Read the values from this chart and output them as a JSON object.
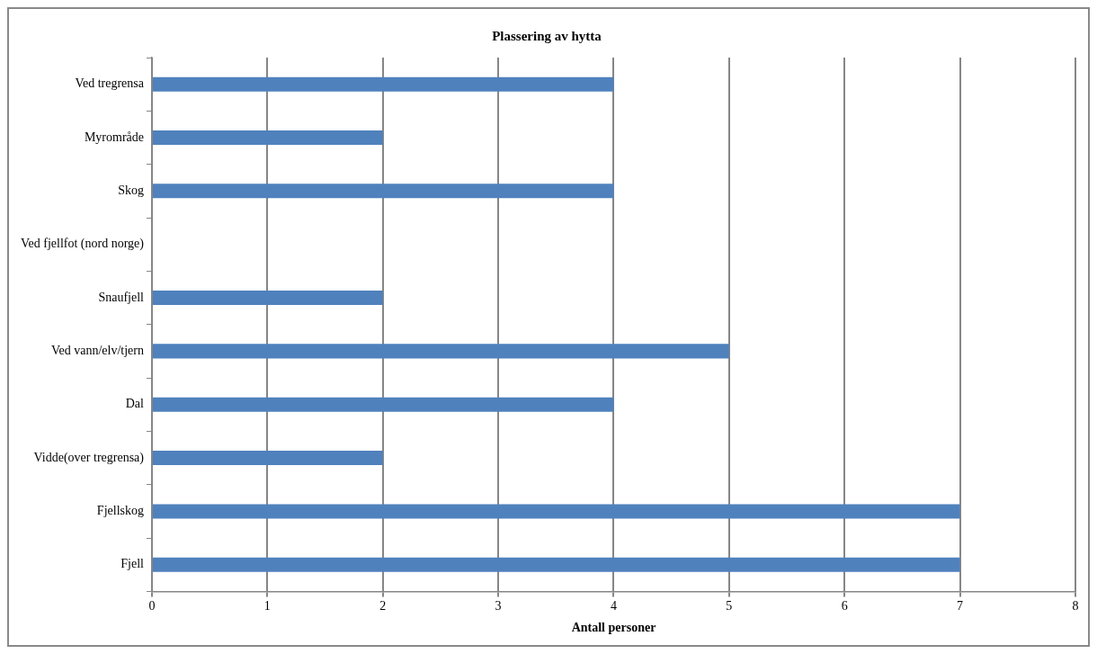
{
  "chart_data": {
    "type": "bar",
    "orientation": "horizontal",
    "title": "Plassering av hytta",
    "xlabel": "Antall personer",
    "categories": [
      "Ved tregrensa",
      "Myrområde",
      "Skog",
      "Ved fjellfot (nord norge)",
      "Snaufjell",
      "Ved vann/elv/tjern",
      "Dal",
      "Vidde(over tregrensa)",
      "Fjellskog",
      "Fjell"
    ],
    "values": [
      4,
      2,
      4,
      0,
      2,
      5,
      4,
      2,
      7,
      7
    ],
    "color": "#4f81bd",
    "xlim": [
      0,
      8
    ],
    "xticks": [
      0,
      1,
      2,
      3,
      4,
      5,
      6,
      7,
      8
    ],
    "grid": "x",
    "legend": false
  }
}
